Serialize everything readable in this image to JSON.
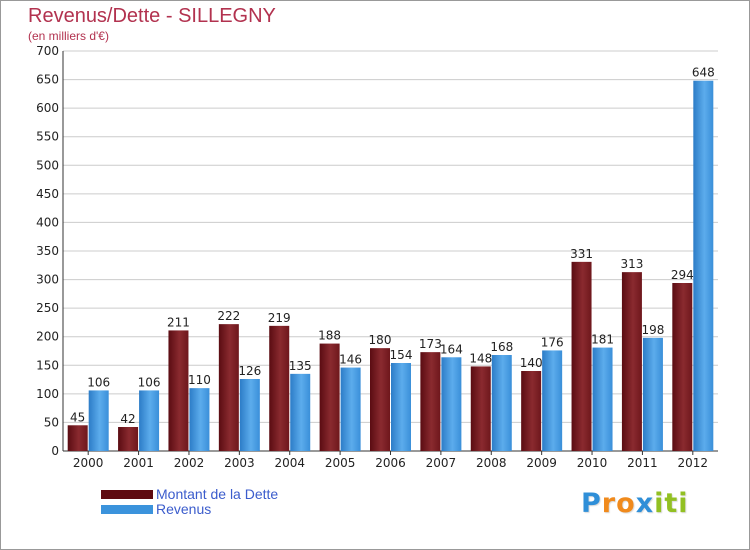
{
  "chart_data": {
    "type": "bar",
    "title": "Revenus/Dette - SILLEGNY",
    "subtitle": "(en milliers d'€)",
    "categories": [
      "2000",
      "2001",
      "2002",
      "2003",
      "2004",
      "2005",
      "2006",
      "2007",
      "2008",
      "2009",
      "2010",
      "2011",
      "2012"
    ],
    "series": [
      {
        "name": "Montant de la Dette",
        "color": "#7a1e23",
        "values": [
          45,
          42,
          211,
          222,
          219,
          188,
          180,
          173,
          148,
          140,
          331,
          313,
          294
        ]
      },
      {
        "name": "Revenus",
        "color": "#4a9be0",
        "values": [
          106,
          106,
          110,
          126,
          135,
          146,
          154,
          164,
          168,
          176,
          181,
          198,
          648
        ]
      }
    ],
    "ylim": [
      0,
      700
    ],
    "y_ticks": [
      0,
      50,
      100,
      150,
      200,
      250,
      300,
      350,
      400,
      450,
      500,
      550,
      600,
      650,
      700
    ],
    "grid": true,
    "legend_position": "bottom-left"
  },
  "brand": {
    "letters": [
      "P",
      "r",
      "o",
      "x",
      "i",
      "t",
      "i"
    ],
    "colors": [
      "#2f8fd8",
      "#f08a1c",
      "#f08a1c",
      "#2f8fd8",
      "#92c022",
      "#92c022",
      "#92c022"
    ]
  }
}
